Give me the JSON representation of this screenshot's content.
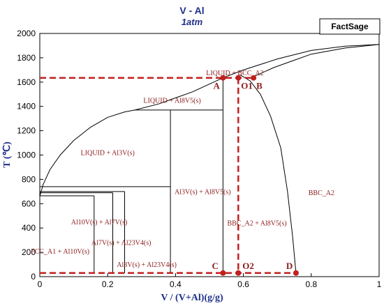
{
  "chart_data": {
    "type": "phase_diagram",
    "title": "V - Al",
    "subtitle": "1atm",
    "brand": "FactSage",
    "xlabel": "V / (V+Al)(g/g)",
    "ylabel": "T (℃)",
    "xlim": [
      0,
      1
    ],
    "ylim": [
      0,
      2000
    ],
    "x_ticks": [
      "0",
      "0.2",
      "0.4",
      "0.6",
      "0.8",
      "1"
    ],
    "y_ticks": [
      "0",
      "200",
      "400",
      "600",
      "800",
      "1000",
      "1200",
      "1400",
      "1600",
      "1800",
      "2000"
    ],
    "grid": false,
    "regions": [
      {
        "label": "LIQUID + BCC_A2",
        "x": 0.575,
        "y": 1655
      },
      {
        "label": "LIQUID + Al8V5(s)",
        "x": 0.39,
        "y": 1430
      },
      {
        "label": "LIQUID + Al3V(s)",
        "x": 0.2,
        "y": 1000
      },
      {
        "label": "BBC_A2",
        "x": 0.83,
        "y": 670
      },
      {
        "label": "Al3V(s) + Al8V5(s)",
        "x": 0.48,
        "y": 680
      },
      {
        "label": "BBC_A2 + Al8V5(s)",
        "x": 0.64,
        "y": 420
      },
      {
        "label": "Al10V(s) + Al7V(s)",
        "x": 0.175,
        "y": 430
      },
      {
        "label": "Al7V(s) + Al23V4(s)",
        "x": 0.24,
        "y": 260
      },
      {
        "label": "Al3V(s) + Al23V4(s)",
        "x": 0.315,
        "y": 80
      },
      {
        "label": "FCC_A1 + Al10V(s)",
        "x": 0.06,
        "y": 190
      }
    ],
    "points": [
      {
        "label": "A",
        "x": 0.54,
        "y": 1635
      },
      {
        "label": "O1",
        "x": 0.585,
        "y": 1635
      },
      {
        "label": "B",
        "x": 0.63,
        "y": 1635
      },
      {
        "label": "C",
        "x": 0.54,
        "y": 30
      },
      {
        "label": "O2",
        "x": 0.585,
        "y": 30
      },
      {
        "label": "D",
        "x": 0.755,
        "y": 30
      }
    ],
    "phase_lines": {
      "liquidus": [
        [
          0,
          660
        ],
        [
          0.01,
          760
        ],
        [
          0.03,
          880
        ],
        [
          0.06,
          1000
        ],
        [
          0.1,
          1120
        ],
        [
          0.15,
          1230
        ],
        [
          0.2,
          1310
        ],
        [
          0.25,
          1355
        ],
        [
          0.28,
          1370
        ],
        [
          0.35,
          1420
        ],
        [
          0.45,
          1520
        ],
        [
          0.54,
          1635
        ],
        [
          0.6,
          1700
        ],
        [
          0.7,
          1790
        ],
        [
          0.8,
          1860
        ],
        [
          0.9,
          1895
        ],
        [
          1.0,
          1910
        ]
      ],
      "solidus": [
        [
          0.63,
          1645
        ],
        [
          0.69,
          1720
        ],
        [
          0.75,
          1780
        ],
        [
          0.8,
          1830
        ],
        [
          0.9,
          1880
        ],
        [
          1.0,
          1910
        ]
      ],
      "solvus": [
        [
          0.59,
          1660
        ],
        [
          0.62,
          1610
        ],
        [
          0.65,
          1500
        ],
        [
          0.68,
          1320
        ],
        [
          0.71,
          1060
        ],
        [
          0.73,
          700
        ],
        [
          0.745,
          330
        ],
        [
          0.755,
          30
        ]
      ],
      "horizontals": [
        {
          "x0": 0.28,
          "x1": 0.54,
          "y": 1370
        },
        {
          "x0": 0,
          "x1": 0.385,
          "y": 740
        },
        {
          "x0": 0,
          "x1": 0.25,
          "y": 700
        },
        {
          "x0": 0,
          "x1": 0.215,
          "y": 690
        },
        {
          "x0": 0,
          "x1": 0.16,
          "y": 665
        }
      ],
      "verticals": [
        {
          "x": 0.16,
          "y0": 30,
          "y1": 665
        },
        {
          "x": 0.215,
          "y0": 30,
          "y1": 690
        },
        {
          "x": 0.25,
          "y0": 30,
          "y1": 700
        },
        {
          "x": 0.385,
          "y0": 30,
          "y1": 1370
        },
        {
          "x": 0.54,
          "y0": 30,
          "y1": 1635
        }
      ]
    },
    "guide_lines": [
      {
        "points": [
          [
            0,
            1635
          ],
          [
            0.63,
            1635
          ]
        ]
      },
      {
        "points": [
          [
            0.585,
            1635
          ],
          [
            0.585,
            30
          ]
        ]
      },
      {
        "points": [
          [
            0,
            30
          ],
          [
            0.755,
            30
          ]
        ]
      }
    ],
    "colors": {
      "axis": "#000000",
      "title": "#1f2f8a",
      "region_text": "#8b1a1a",
      "guide": "#c0201e"
    }
  }
}
